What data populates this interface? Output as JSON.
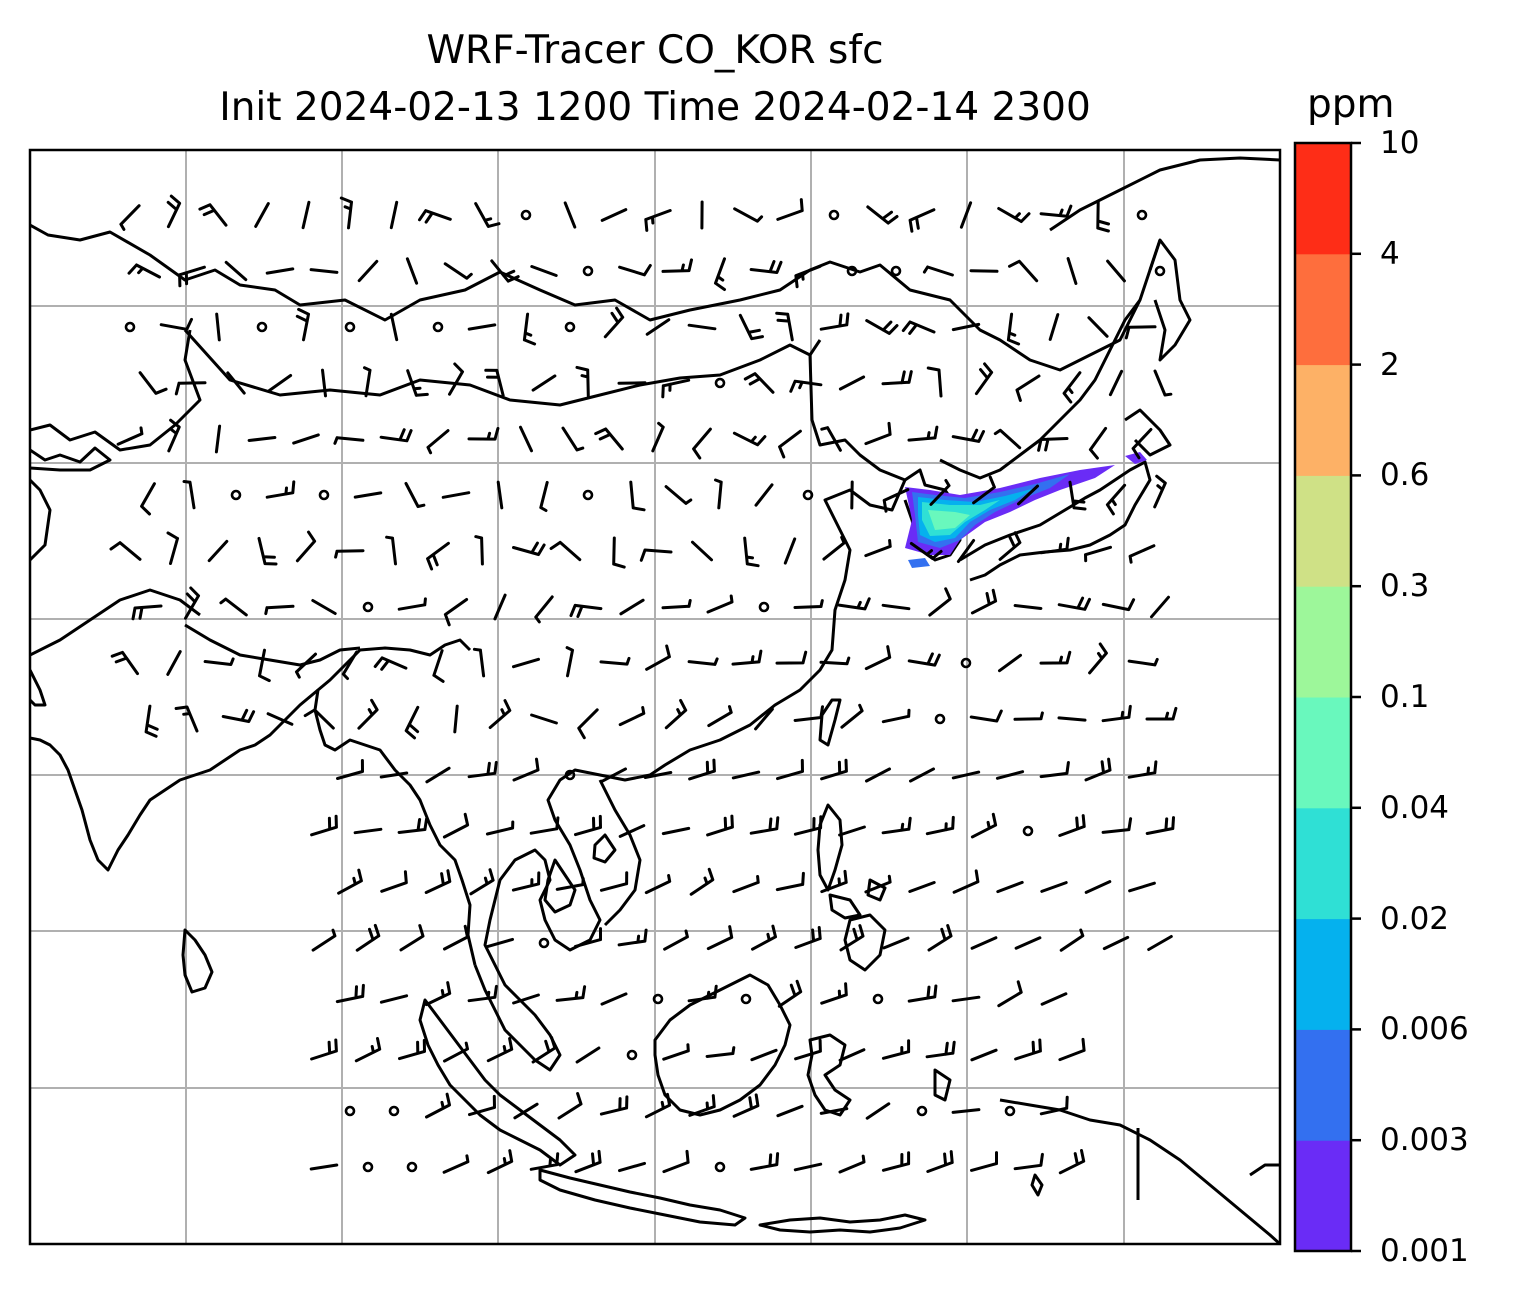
{
  "title": {
    "line1": "WRF-Tracer CO_KOR sfc",
    "line2": "Init 2024-02-13 1200 Time 2024-02-14 2300"
  },
  "colorbar": {
    "unit": "ppm",
    "levels": [
      "0.001",
      "0.003",
      "0.006",
      "0.02",
      "0.04",
      "0.1",
      "0.3",
      "0.6",
      "2",
      "4",
      "10"
    ],
    "colors": [
      "#6a2cf6",
      "#3370f0",
      "#05b1ee",
      "#2fe0d5",
      "#69f8bd",
      "#9df79a",
      "#cfe186",
      "#fdb166",
      "#fe6e3d",
      "#fe2d17"
    ]
  },
  "map": {
    "region": "East / Southeast Asia",
    "gridlines": true,
    "grid_color": "#b0b0b0",
    "coastline_color": "#000000",
    "tracer_plume": {
      "source_region": "Korea",
      "max_level_shown": "0.1",
      "colors": [
        "#6a2cf6",
        "#3370f0",
        "#05b1ee",
        "#2fe0d5",
        "#69f8bd"
      ]
    },
    "wind_barbs": true
  }
}
